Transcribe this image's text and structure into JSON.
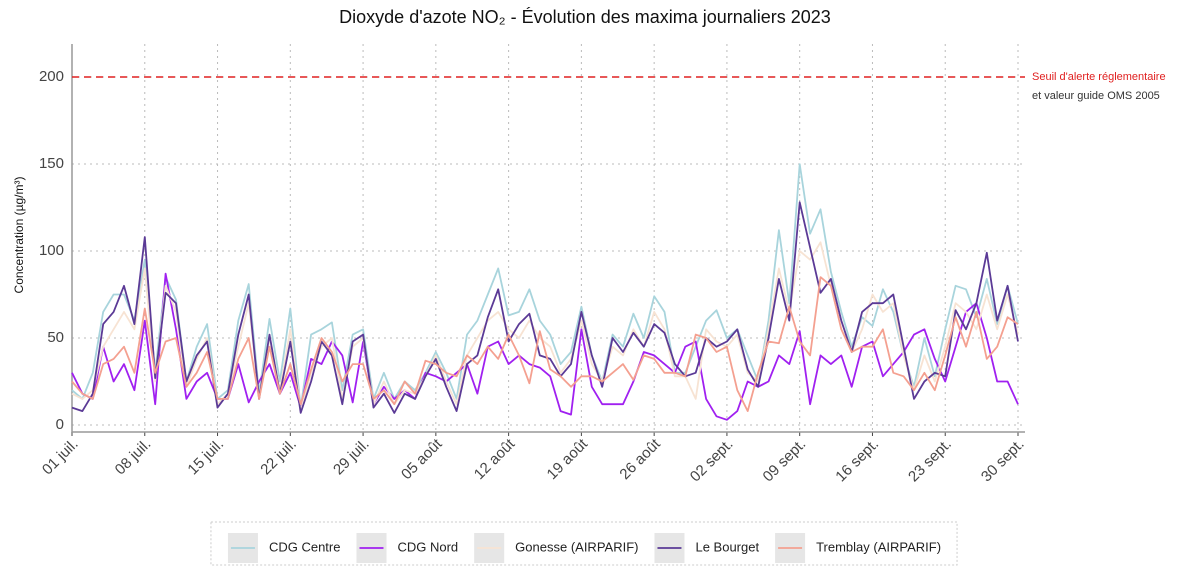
{
  "chart_data": {
    "type": "line",
    "title": "Dioxyde d'azote NO₂ - Évolution des maxima journaliers 2023",
    "y_label": "Concentration (µg/m³)",
    "categories": [
      "01 juil.",
      null,
      null,
      null,
      null,
      null,
      null,
      "08 juil.",
      null,
      null,
      null,
      null,
      null,
      null,
      "15 juil.",
      null,
      null,
      null,
      null,
      null,
      null,
      "22 juil.",
      null,
      null,
      null,
      null,
      null,
      null,
      "29 juil.",
      null,
      null,
      null,
      null,
      null,
      null,
      "05 août",
      null,
      null,
      null,
      null,
      null,
      null,
      "12 août",
      null,
      null,
      null,
      null,
      null,
      null,
      "19 août",
      null,
      null,
      null,
      null,
      null,
      null,
      "26 août",
      null,
      null,
      null,
      null,
      null,
      null,
      "02 sept.",
      null,
      null,
      null,
      null,
      null,
      null,
      "09 sept.",
      null,
      null,
      null,
      null,
      null,
      null,
      "16 sept.",
      null,
      null,
      null,
      null,
      null,
      null,
      "23 sept.",
      null,
      null,
      null,
      null,
      null,
      null,
      "30 sept."
    ],
    "series": [
      {
        "name": "CDG Centre",
        "color": "#a8d4dc",
        "values": [
          20,
          15,
          30,
          65,
          75,
          75,
          60,
          95,
          30,
          85,
          72,
          25,
          45,
          58,
          15,
          20,
          60,
          81,
          18,
          61,
          25,
          67,
          10,
          52,
          55,
          59,
          20,
          52,
          55,
          15,
          30,
          15,
          25,
          20,
          30,
          42,
          30,
          15,
          52,
          60,
          75,
          90,
          63,
          65,
          78,
          60,
          52,
          35,
          42,
          68,
          40,
          25,
          52,
          45,
          64,
          50,
          74,
          65,
          30,
          30,
          45,
          60,
          66,
          50,
          55,
          40,
          25,
          60,
          112,
          70,
          150,
          110,
          124,
          88,
          65,
          45,
          62,
          57,
          78,
          65,
          40,
          22,
          50,
          28,
          55,
          80,
          78,
          62,
          84,
          58,
          80,
          58
        ]
      },
      {
        "name": "CDG Nord",
        "color": "#a020f0",
        "values": [
          30,
          18,
          15,
          45,
          25,
          35,
          20,
          60,
          12,
          87,
          55,
          15,
          25,
          30,
          15,
          15,
          35,
          13,
          25,
          35,
          18,
          30,
          10,
          38,
          35,
          48,
          40,
          13,
          48,
          12,
          22,
          15,
          20,
          15,
          30,
          28,
          25,
          30,
          35,
          18,
          45,
          48,
          35,
          40,
          35,
          33,
          28,
          8,
          6,
          55,
          22,
          12,
          12,
          12,
          25,
          42,
          40,
          35,
          30,
          45,
          48,
          15,
          5,
          3,
          8,
          25,
          22,
          25,
          40,
          35,
          54,
          12,
          40,
          35,
          40,
          22,
          45,
          48,
          28,
          35,
          42,
          52,
          55,
          38,
          25,
          45,
          65,
          70,
          50,
          25,
          25,
          12
        ]
      },
      {
        "name": "Gonesse (AIRPARIF)",
        "color": "#f7e3d3",
        "values": [
          18,
          15,
          20,
          45,
          55,
          65,
          55,
          90,
          25,
          80,
          65,
          22,
          38,
          50,
          12,
          18,
          45,
          70,
          15,
          50,
          20,
          55,
          8,
          30,
          45,
          50,
          15,
          45,
          50,
          12,
          25,
          12,
          20,
          18,
          28,
          40,
          25,
          12,
          40,
          50,
          60,
          65,
          55,
          50,
          60,
          50,
          45,
          30,
          38,
          60,
          35,
          25,
          45,
          40,
          55,
          45,
          65,
          55,
          28,
          28,
          15,
          55,
          48,
          45,
          52,
          30,
          25,
          55,
          90,
          65,
          100,
          95,
          105,
          80,
          60,
          42,
          55,
          75,
          65,
          70,
          40,
          20,
          40,
          25,
          45,
          70,
          65,
          55,
          75,
          55,
          75,
          52
        ]
      },
      {
        "name": "Le Bourget",
        "color": "#5b3a96",
        "values": [
          10,
          8,
          18,
          58,
          65,
          80,
          58,
          108,
          27,
          76,
          70,
          25,
          40,
          48,
          10,
          18,
          52,
          75,
          15,
          52,
          18,
          48,
          7,
          25,
          48,
          40,
          12,
          48,
          52,
          10,
          18,
          7,
          18,
          15,
          28,
          38,
          22,
          8,
          35,
          40,
          62,
          78,
          48,
          58,
          64,
          40,
          38,
          28,
          35,
          65,
          40,
          22,
          50,
          42,
          53,
          45,
          58,
          53,
          35,
          28,
          30,
          50,
          45,
          48,
          55,
          32,
          22,
          50,
          84,
          60,
          128,
          102,
          76,
          84,
          60,
          42,
          65,
          70,
          70,
          75,
          45,
          15,
          25,
          30,
          28,
          66,
          55,
          70,
          99,
          60,
          80,
          48
        ]
      },
      {
        "name": "Tremblay (AIRPARIF)",
        "color": "#f4a090",
        "values": [
          25,
          18,
          15,
          35,
          38,
          45,
          30,
          67,
          30,
          48,
          50,
          22,
          30,
          42,
          15,
          15,
          38,
          50,
          15,
          45,
          18,
          35,
          12,
          32,
          50,
          42,
          25,
          35,
          35,
          15,
          20,
          12,
          25,
          18,
          37,
          35,
          30,
          28,
          40,
          35,
          45,
          38,
          52,
          40,
          24,
          54,
          32,
          28,
          22,
          28,
          28,
          25,
          30,
          35,
          26,
          40,
          38,
          30,
          30,
          28,
          52,
          50,
          42,
          45,
          20,
          8,
          30,
          48,
          47,
          68,
          48,
          40,
          85,
          80,
          55,
          42,
          45,
          45,
          55,
          30,
          28,
          20,
          30,
          20,
          40,
          62,
          45,
          65,
          38,
          45,
          62,
          58
        ]
      }
    ],
    "ylim": [
      -4,
      219
    ],
    "yticks": [
      0,
      50,
      100,
      150,
      200
    ],
    "grid": true,
    "threshold": 200,
    "threshold_color": "#e02020",
    "annotations": [
      "Seuil d'alerte réglementaire",
      "et valeur guide OMS 2005"
    ],
    "legend": "bottom"
  }
}
